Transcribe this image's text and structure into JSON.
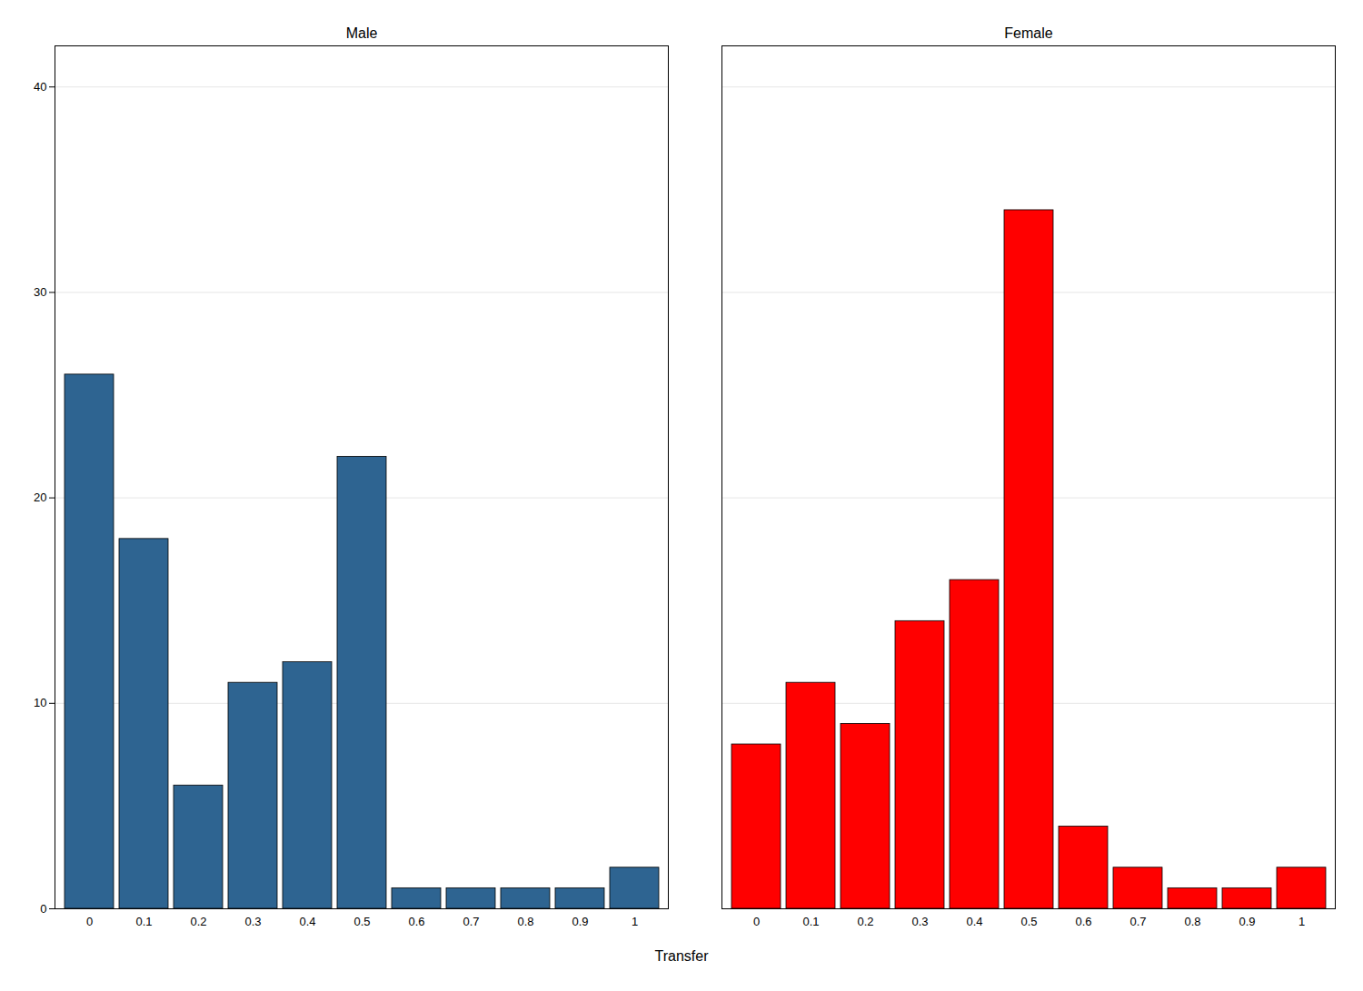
{
  "chart_data": {
    "type": "bar",
    "x_label": "Transfer",
    "categories": [
      "0",
      "0.1",
      "0.2",
      "0.3",
      "0.4",
      "0.5",
      "0.6",
      "0.7",
      "0.8",
      "0.9",
      "1"
    ],
    "series": [
      {
        "name": "Male",
        "color": "#2e6491",
        "values": [
          26,
          18,
          6,
          11,
          12,
          22,
          1,
          1,
          1,
          1,
          2
        ]
      },
      {
        "name": "Female",
        "color": "#ff0000",
        "values": [
          8,
          11,
          9,
          14,
          16,
          34,
          4,
          2,
          1,
          1,
          2
        ]
      }
    ],
    "ylim": [
      0,
      42
    ],
    "yticks": [
      0,
      10,
      20,
      30,
      40
    ],
    "grid": true
  }
}
